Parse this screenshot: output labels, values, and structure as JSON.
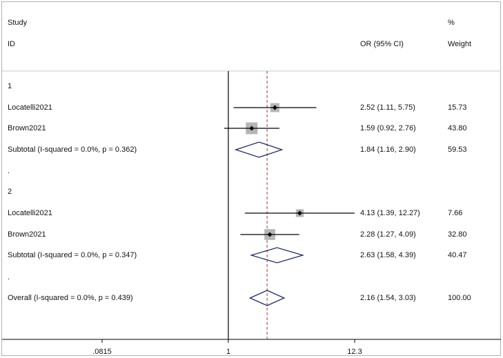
{
  "header": {
    "study": "Study",
    "id": "ID",
    "or_label": "OR (95% CI)",
    "pct": "%",
    "weight": "Weight"
  },
  "chart_data": {
    "type": "forest",
    "scale": "log",
    "x_ticks": [
      {
        "value": 0.0815,
        "label": ".0815"
      },
      {
        "value": 1,
        "label": "1"
      },
      {
        "value": 12.3,
        "label": "12.3"
      }
    ],
    "xlim": [
      0.0815,
      12.3
    ],
    "null_line": 1,
    "overall_line": 2.16,
    "rows": [
      {
        "kind": "group",
        "label": "1"
      },
      {
        "kind": "study",
        "label": "Locatelli2021",
        "or": 2.52,
        "lo": 1.11,
        "hi": 5.75,
        "or_text": "2.52 (1.11, 5.75)",
        "weight": 15.73,
        "weight_text": "15.73"
      },
      {
        "kind": "study",
        "label": "Brown2021",
        "or": 1.59,
        "lo": 0.92,
        "hi": 2.76,
        "or_text": "1.59 (0.92, 2.76)",
        "weight": 43.8,
        "weight_text": "43.80"
      },
      {
        "kind": "subtotal",
        "label": "Subtotal  (I-squared = 0.0%, p = 0.362)",
        "or": 1.84,
        "lo": 1.16,
        "hi": 2.9,
        "or_text": "1.84 (1.16, 2.90)",
        "weight_text": "59.53"
      },
      {
        "kind": "sep",
        "label": "."
      },
      {
        "kind": "group",
        "label": "2"
      },
      {
        "kind": "study",
        "label": "Locatelli2021",
        "or": 4.13,
        "lo": 1.39,
        "hi": 12.27,
        "or_text": "4.13 (1.39, 12.27)",
        "weight": 7.66,
        "weight_text": "7.66"
      },
      {
        "kind": "study",
        "label": "Brown2021",
        "or": 2.28,
        "lo": 1.27,
        "hi": 4.09,
        "or_text": "2.28 (1.27, 4.09)",
        "weight": 32.8,
        "weight_text": "32.80"
      },
      {
        "kind": "subtotal",
        "label": "Subtotal  (I-squared = 0.0%, p = 0.347)",
        "or": 2.63,
        "lo": 1.58,
        "hi": 4.39,
        "or_text": "2.63 (1.58, 4.39)",
        "weight_text": "40.47"
      },
      {
        "kind": "sep",
        "label": "."
      },
      {
        "kind": "overall",
        "label": "Overall  (I-squared = 0.0%, p = 0.439)",
        "or": 2.16,
        "lo": 1.54,
        "hi": 3.03,
        "or_text": "2.16 (1.54, 3.03)",
        "weight_text": "100.00"
      }
    ],
    "colors": {
      "ci_line": "#000000",
      "box": "#b5b5b5",
      "diamond": "#1f2a6b",
      "null_line": "#000000",
      "overall_line": "#a33232",
      "divider": "#c8c8c8"
    }
  }
}
